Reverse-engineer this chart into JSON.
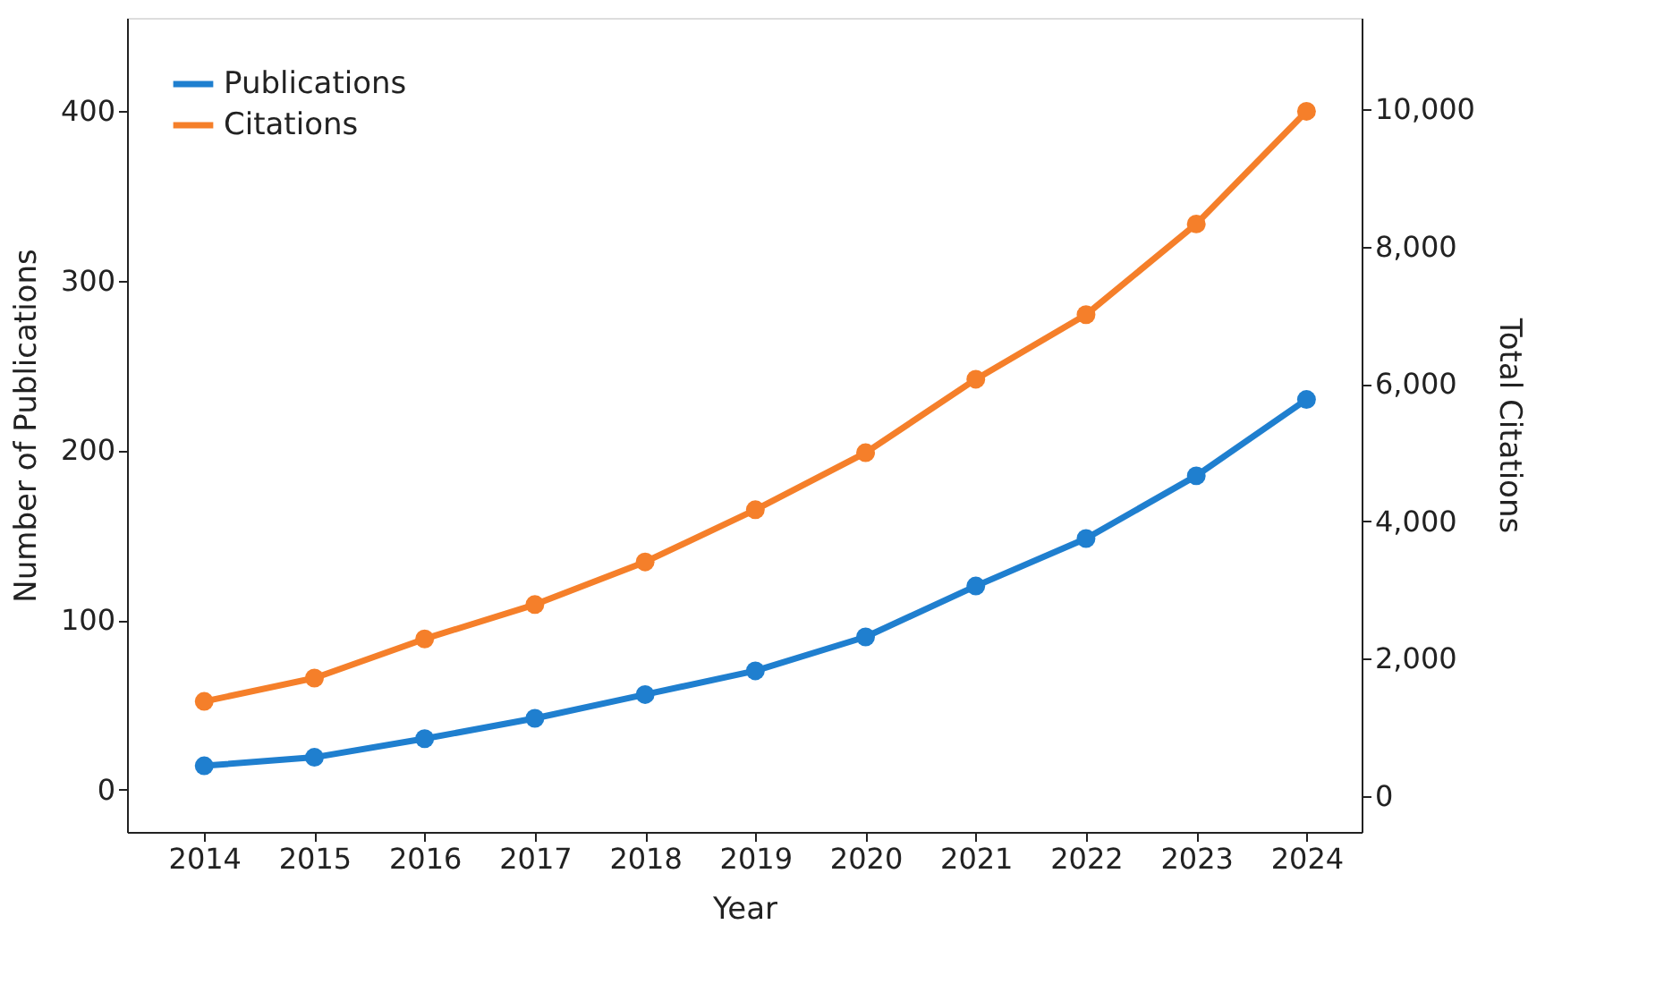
{
  "chart_data": {
    "type": "line",
    "xlabel": "Year",
    "ylabel": "Number of Publications",
    "y2label": "Total Citations",
    "x": [
      2014,
      2015,
      2016,
      2017,
      2018,
      2019,
      2020,
      2021,
      2022,
      2023,
      2024
    ],
    "series": [
      {
        "name": "Publications",
        "color": "#1f7fcf",
        "values": [
          14,
          19,
          30,
          42,
          56,
          70,
          90,
          120,
          148,
          185,
          230
        ]
      },
      {
        "name": "Citations",
        "color": "#f57f2a",
        "axis": "y2",
        "values": [
          1380,
          1720,
          2290,
          2790,
          3410,
          4170,
          5000,
          6070,
          7010,
          8330,
          9970
        ]
      }
    ],
    "xlim": [
      2013.3,
      2024.5
    ],
    "xticks": [
      2014,
      2015,
      2016,
      2017,
      2018,
      2019,
      2020,
      2021,
      2022,
      2023,
      2024
    ],
    "ylim": [
      -25,
      455
    ],
    "yticks": [
      0,
      100,
      200,
      300,
      400
    ],
    "y2lim": [
      -520,
      11330
    ],
    "y2ticks": [
      {
        "value": 0,
        "label": "0"
      },
      {
        "value": 2000,
        "label": "2,000"
      },
      {
        "value": 4000,
        "label": "4,000"
      },
      {
        "value": 6000,
        "label": "6,000"
      },
      {
        "value": 8000,
        "label": "8,000"
      },
      {
        "value": 10000,
        "label": "10,000"
      }
    ],
    "grid": false,
    "legend": "top left",
    "marker": "circle",
    "line_style": "solid"
  }
}
